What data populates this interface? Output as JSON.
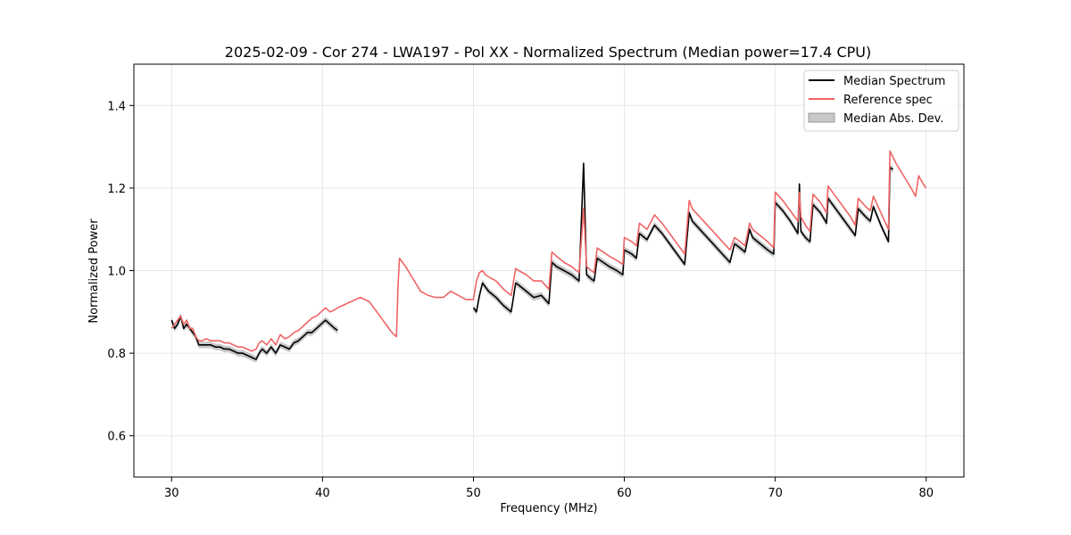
{
  "chart_data": {
    "type": "line",
    "title": "2025-02-09 - Cor 274 - LWA197 - Pol XX - Normalized Spectrum (Median power=17.4 CPU)",
    "xlabel": "Frequency (MHz)",
    "ylabel": "Normalized Power",
    "xlim": [
      27.5,
      82.5
    ],
    "ylim": [
      0.5,
      1.5
    ],
    "xticks": [
      30,
      40,
      50,
      60,
      70,
      80
    ],
    "yticks": [
      0.6,
      0.8,
      1.0,
      1.2,
      1.4
    ],
    "xtick_labels": [
      "30",
      "40",
      "50",
      "60",
      "70",
      "80"
    ],
    "ytick_labels": [
      "0.6",
      "0.8",
      "1.0",
      "1.2",
      "1.4"
    ],
    "grid": true,
    "legend_position": "top-right",
    "colors": {
      "median": "#000000",
      "reference": "#f06464",
      "mad_fill": "#c8c8c8",
      "overlap": "#8b0000"
    },
    "series": [
      {
        "name": "Median Spectrum",
        "segments": [
          {
            "x": [
              30.0,
              30.2,
              30.4,
              30.6,
              30.8,
              31.0,
              31.2,
              31.4,
              31.6,
              31.8,
              32.0,
              32.3,
              32.6,
              32.9,
              33.2,
              33.5,
              33.8,
              34.1,
              34.4,
              34.7,
              35.0,
              35.3,
              35.6,
              35.8,
              36.0,
              36.3,
              36.6,
              36.9,
              37.2,
              37.5,
              37.8,
              38.1,
              38.4,
              38.7,
              39.0,
              39.3,
              39.6,
              39.9,
              40.2,
              40.5,
              40.8,
              41.0
            ],
            "y": [
              0.88,
              0.86,
              0.87,
              0.89,
              0.86,
              0.87,
              0.86,
              0.85,
              0.84,
              0.82,
              0.82,
              0.82,
              0.82,
              0.815,
              0.815,
              0.81,
              0.81,
              0.805,
              0.8,
              0.8,
              0.795,
              0.79,
              0.785,
              0.8,
              0.81,
              0.8,
              0.815,
              0.8,
              0.82,
              0.815,
              0.81,
              0.825,
              0.83,
              0.84,
              0.85,
              0.85,
              0.86,
              0.87,
              0.88,
              0.87,
              0.86,
              0.855
            ]
          },
          {
            "x": [
              50.0,
              50.2,
              50.4,
              50.6,
              50.8,
              51.0,
              51.5,
              52.0,
              52.5,
              52.8,
              53.0,
              53.5,
              54.0,
              54.5,
              55.0,
              55.2,
              55.5,
              56.0,
              56.5,
              57.0,
              57.3,
              57.5,
              57.8,
              58.0,
              58.2,
              58.6,
              59.0,
              59.5,
              59.9,
              60.0,
              60.5,
              60.8,
              61.0,
              61.5,
              62.0,
              62.5,
              63.0,
              63.5,
              64.0,
              64.3,
              64.5,
              65.0,
              65.5,
              66.0,
              66.5,
              67.0,
              67.3,
              67.5,
              68.0,
              68.3,
              68.5,
              69.0,
              69.5,
              69.9,
              70.0,
              70.5,
              71.0,
              71.5,
              71.6,
              71.7,
              72.0,
              72.3,
              72.5,
              73.0,
              73.4,
              73.5,
              74.0,
              74.5,
              75.0,
              75.3,
              75.5,
              76.0,
              76.3,
              76.5,
              77.0,
              77.5,
              77.6,
              77.8
            ],
            "y": [
              0.91,
              0.9,
              0.94,
              0.97,
              0.96,
              0.95,
              0.935,
              0.915,
              0.9,
              0.97,
              0.965,
              0.95,
              0.935,
              0.94,
              0.92,
              1.02,
              1.01,
              1.0,
              0.99,
              0.975,
              1.26,
              0.99,
              0.98,
              0.975,
              1.03,
              1.02,
              1.01,
              1.0,
              0.99,
              1.05,
              1.04,
              1.03,
              1.09,
              1.075,
              1.11,
              1.09,
              1.065,
              1.04,
              1.015,
              1.14,
              1.12,
              1.1,
              1.08,
              1.06,
              1.04,
              1.02,
              1.065,
              1.06,
              1.045,
              1.1,
              1.08,
              1.065,
              1.05,
              1.04,
              1.165,
              1.145,
              1.12,
              1.09,
              1.21,
              1.095,
              1.08,
              1.07,
              1.16,
              1.14,
              1.115,
              1.175,
              1.15,
              1.125,
              1.1,
              1.085,
              1.15,
              1.13,
              1.12,
              1.155,
              1.11,
              1.07,
              1.25,
              1.245
            ]
          }
        ]
      },
      {
        "name": "Reference spec",
        "x": [
          30.0,
          30.2,
          30.4,
          30.6,
          30.8,
          31.0,
          31.2,
          31.4,
          31.6,
          31.8,
          32.0,
          32.3,
          32.6,
          32.9,
          33.2,
          33.5,
          33.8,
          34.1,
          34.4,
          34.7,
          35.0,
          35.3,
          35.6,
          35.8,
          36.0,
          36.3,
          36.6,
          36.9,
          37.2,
          37.5,
          37.8,
          38.1,
          38.4,
          38.7,
          39.0,
          39.3,
          39.6,
          39.9,
          40.2,
          40.5,
          40.8,
          41.0,
          41.3,
          41.6,
          41.9,
          42.2,
          42.5,
          42.8,
          43.1,
          43.4,
          43.7,
          44.0,
          44.3,
          44.6,
          44.9,
          45.0,
          45.1,
          45.5,
          46.0,
          46.5,
          47.0,
          47.5,
          48.0,
          48.5,
          49.0,
          49.5,
          50.0,
          50.2,
          50.4,
          50.6,
          50.8,
          51.0,
          51.5,
          52.0,
          52.5,
          52.8,
          53.0,
          53.5,
          54.0,
          54.5,
          55.0,
          55.2,
          55.5,
          56.0,
          56.5,
          57.0,
          57.3,
          57.5,
          57.8,
          58.0,
          58.2,
          58.6,
          59.0,
          59.5,
          59.9,
          60.0,
          60.5,
          60.8,
          61.0,
          61.5,
          62.0,
          62.5,
          63.0,
          63.5,
          64.0,
          64.3,
          64.5,
          65.0,
          65.5,
          66.0,
          66.5,
          67.0,
          67.3,
          67.5,
          68.0,
          68.3,
          68.5,
          69.0,
          69.5,
          69.9,
          70.0,
          70.5,
          71.0,
          71.5,
          71.6,
          71.7,
          72.0,
          72.3,
          72.5,
          73.0,
          73.4,
          73.5,
          74.0,
          74.5,
          75.0,
          75.3,
          75.5,
          76.0,
          76.3,
          76.5,
          77.0,
          77.5,
          77.6,
          78.0,
          78.5,
          79.0,
          79.3,
          79.5,
          79.8,
          80.0
        ],
        "y": [
          0.86,
          0.87,
          0.88,
          0.89,
          0.87,
          0.88,
          0.86,
          0.86,
          0.84,
          0.83,
          0.83,
          0.835,
          0.83,
          0.83,
          0.83,
          0.825,
          0.825,
          0.82,
          0.815,
          0.815,
          0.81,
          0.805,
          0.81,
          0.825,
          0.83,
          0.82,
          0.835,
          0.82,
          0.845,
          0.835,
          0.84,
          0.85,
          0.855,
          0.865,
          0.875,
          0.885,
          0.89,
          0.9,
          0.91,
          0.9,
          0.905,
          0.91,
          0.915,
          0.92,
          0.925,
          0.93,
          0.935,
          0.93,
          0.925,
          0.91,
          0.895,
          0.88,
          0.865,
          0.85,
          0.84,
          0.96,
          1.03,
          1.01,
          0.98,
          0.95,
          0.94,
          0.935,
          0.935,
          0.95,
          0.94,
          0.93,
          0.93,
          0.975,
          0.995,
          1.0,
          0.99,
          0.985,
          0.975,
          0.955,
          0.94,
          1.005,
          1.0,
          0.99,
          0.975,
          0.975,
          0.955,
          1.045,
          1.035,
          1.02,
          1.01,
          0.995,
          1.15,
          1.01,
          1.0,
          0.995,
          1.055,
          1.045,
          1.035,
          1.025,
          1.015,
          1.08,
          1.07,
          1.06,
          1.115,
          1.1,
          1.135,
          1.115,
          1.09,
          1.065,
          1.04,
          1.17,
          1.15,
          1.13,
          1.11,
          1.09,
          1.07,
          1.05,
          1.08,
          1.075,
          1.06,
          1.115,
          1.1,
          1.085,
          1.07,
          1.055,
          1.19,
          1.17,
          1.145,
          1.12,
          1.19,
          1.13,
          1.11,
          1.095,
          1.185,
          1.165,
          1.14,
          1.205,
          1.18,
          1.155,
          1.13,
          1.11,
          1.175,
          1.155,
          1.145,
          1.18,
          1.14,
          1.1,
          1.29,
          1.26,
          1.23,
          1.2,
          1.18,
          1.23,
          1.21,
          1.2
        ]
      },
      {
        "name": "Median Abs. Dev.",
        "band_width": 0.008
      }
    ],
    "legend": [
      "Median Spectrum",
      "Reference spec",
      "Median Abs. Dev."
    ]
  }
}
